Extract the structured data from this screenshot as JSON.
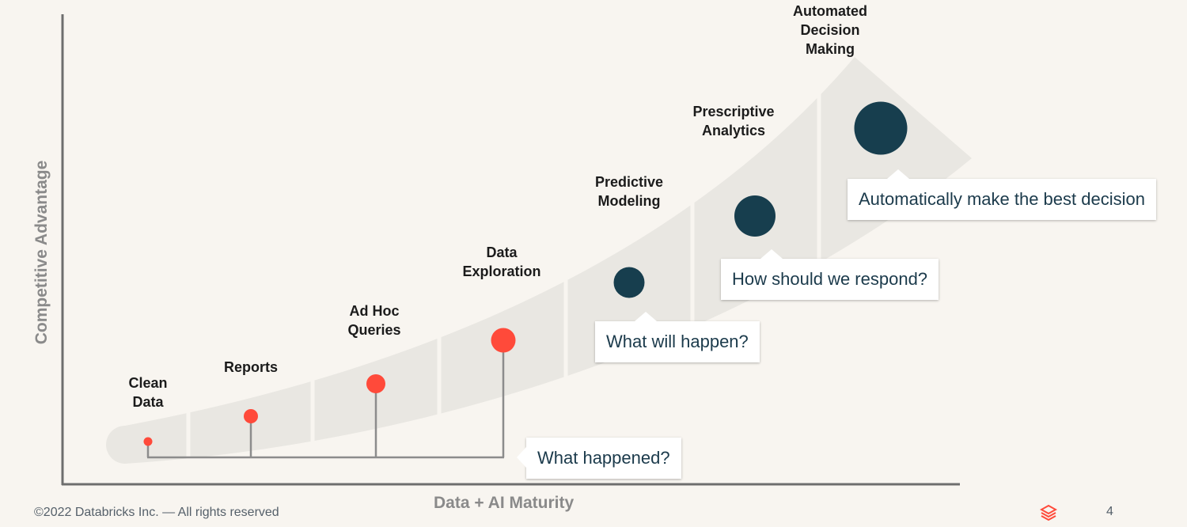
{
  "axes": {
    "x_label": "Data + AI Maturity",
    "y_label": "Competitive Advantage"
  },
  "stages": [
    {
      "label": "Clean\nData",
      "group": "past"
    },
    {
      "label": "Reports",
      "group": "past"
    },
    {
      "label": "Ad Hoc\nQueries",
      "group": "past"
    },
    {
      "label": "Data\nExploration",
      "group": "past"
    },
    {
      "label": "Predictive\nModeling",
      "group": "future"
    },
    {
      "label": "Prescriptive\nAnalytics",
      "group": "future"
    },
    {
      "label": "Automated\nDecision\nMaking",
      "group": "future"
    }
  ],
  "questions": {
    "past": "What happened?",
    "predictive": "What will happen?",
    "prescriptive": "How should we respond?",
    "automated": "Automatically make the best decision"
  },
  "colors": {
    "past_dot": "#ff4a3a",
    "future_dot": "#173e4e",
    "band": "#e9e7e2",
    "connector": "#8c8c8c",
    "axis": "#6e6e6e"
  },
  "footer": {
    "copyright": "©2022 Databricks Inc. — All rights reserved",
    "page_number": "4",
    "logo_icon": "databricks-logo-icon"
  }
}
